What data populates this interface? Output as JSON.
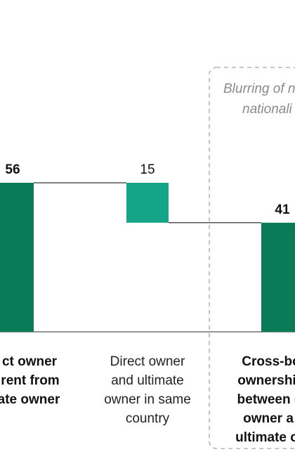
{
  "chart_data": {
    "type": "bar",
    "categories": [
      "Direct owner different from ultimate owner",
      "Direct owner and ultimate owner in same country",
      "Cross-border ownership chain between direct owner and ultimate owner"
    ],
    "values": [
      56,
      15,
      41
    ],
    "value_labels": [
      "56",
      "15",
      "41"
    ],
    "waterfall": [
      {
        "category": "Direct owner different from ultimate owner",
        "start": 0,
        "end": 56,
        "kind": "total"
      },
      {
        "category": "Direct owner and ultimate owner in same country",
        "start": 41,
        "end": 56,
        "kind": "delta"
      },
      {
        "category": "Cross-border ownership chain between direct owner and ultimate owner",
        "start": 0,
        "end": 41,
        "kind": "total"
      }
    ],
    "category_label_lines": [
      [
        "ct owner",
        "rent from",
        "ate owner"
      ],
      [
        "Direct owner",
        "and ultimate",
        "owner in same",
        "country"
      ],
      [
        "Cross-bo",
        "ownershi",
        "between d",
        "owner a",
        "ultimate o"
      ]
    ],
    "annotation_lines": [
      "Blurring of n",
      "nationali"
    ],
    "ylim": [
      0,
      56
    ],
    "colors": {
      "total_bar": "#0b7a57",
      "delta_bar": "#14a487",
      "connector": "#333333",
      "baseline": "#555555",
      "dashed_box": "#b5b5b5",
      "annotation_text": "#8a8a8a",
      "value_text": "#111111"
    },
    "grid": false,
    "legend": "none"
  }
}
